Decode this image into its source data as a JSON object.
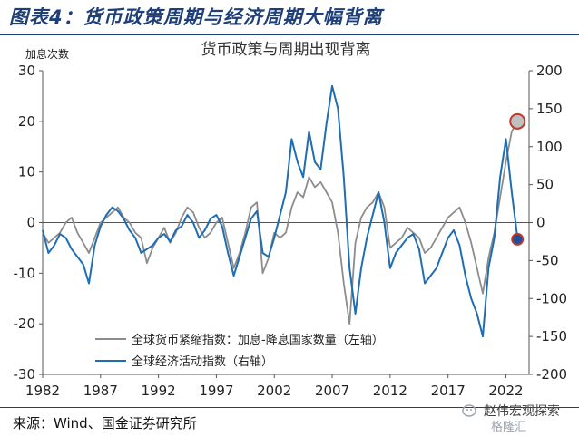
{
  "header": {
    "title": "图表4：货币政策周期与经济周期大幅背离"
  },
  "footer": {
    "source": "来源：Wind、国金证券研究所"
  },
  "watermark": {
    "text": "赵伟宏观探索",
    "sub": "格隆汇"
  },
  "chart_data": {
    "type": "line",
    "title": "货币政策与周期出现背离",
    "left_axis_label": "加息次数",
    "xlim": [
      1982,
      2024
    ],
    "x_ticks": [
      1982,
      1987,
      1992,
      1997,
      2002,
      2007,
      2012,
      2017,
      2022
    ],
    "y_left": {
      "lim": [
        -30,
        30
      ],
      "ticks": [
        -30,
        -20,
        -10,
        0,
        10,
        20,
        30
      ]
    },
    "y_right": {
      "lim": [
        -200,
        200
      ],
      "ticks": [
        -200,
        -150,
        -100,
        -50,
        0,
        50,
        100,
        150,
        200
      ]
    },
    "grid": false,
    "legend_position": "bottom-center",
    "series": [
      {
        "name": "全球货币紧缩指数：加息-降息国家数量（左轴）",
        "axis": "left",
        "color": "#8c8c8c",
        "x": [
          1982.0,
          1982.5,
          1983.0,
          1983.5,
          1984.0,
          1984.5,
          1985.0,
          1985.5,
          1986.0,
          1986.5,
          1987.0,
          1987.5,
          1988.0,
          1988.5,
          1989.0,
          1989.5,
          1990.0,
          1990.5,
          1991.0,
          1991.5,
          1992.0,
          1992.5,
          1993.0,
          1993.5,
          1994.0,
          1994.5,
          1995.0,
          1995.5,
          1996.0,
          1996.5,
          1997.0,
          1997.5,
          1998.0,
          1998.5,
          1999.0,
          1999.5,
          2000.0,
          2000.5,
          2001.0,
          2001.5,
          2002.0,
          2002.5,
          2003.0,
          2003.5,
          2004.0,
          2004.5,
          2005.0,
          2005.5,
          2006.0,
          2006.5,
          2007.0,
          2007.5,
          2008.0,
          2008.5,
          2009.0,
          2009.5,
          2010.0,
          2010.5,
          2011.0,
          2011.5,
          2012.0,
          2012.5,
          2013.0,
          2013.5,
          2014.0,
          2014.5,
          2015.0,
          2015.5,
          2016.0,
          2016.5,
          2017.0,
          2017.5,
          2018.0,
          2018.5,
          2019.0,
          2019.5,
          2020.0,
          2020.5,
          2021.0,
          2021.5,
          2022.0,
          2022.5,
          2023.0
        ],
        "y": [
          -2,
          -4,
          -3,
          -2,
          0,
          1,
          -2,
          -4,
          -6,
          -3,
          0,
          1,
          2,
          3,
          1,
          0,
          -2,
          -3,
          -8,
          -5,
          -3,
          -1,
          -4,
          -2,
          1,
          3,
          2,
          -1,
          -3,
          -2,
          0,
          1,
          -4,
          -9,
          -6,
          -2,
          3,
          4,
          -10,
          -7,
          -2,
          -3,
          -2,
          3,
          6,
          5,
          9,
          7,
          8,
          6,
          4,
          -2,
          -12,
          -20,
          -4,
          1,
          3,
          4,
          6,
          3,
          -5,
          -4,
          -3,
          -1,
          -2,
          -3,
          -6,
          -5,
          -3,
          -1,
          1,
          2,
          3,
          0,
          -4,
          -9,
          -14,
          -7,
          -2,
          5,
          12,
          18,
          20
        ]
      },
      {
        "name": "全球经济活动指数（右轴）",
        "axis": "right",
        "color": "#1f6db3",
        "x": [
          1982.0,
          1982.5,
          1983.0,
          1983.5,
          1984.0,
          1984.5,
          1985.0,
          1985.5,
          1986.0,
          1986.5,
          1987.0,
          1987.5,
          1988.0,
          1988.5,
          1989.0,
          1989.5,
          1990.0,
          1990.5,
          1991.0,
          1991.5,
          1992.0,
          1992.5,
          1993.0,
          1993.5,
          1994.0,
          1994.5,
          1995.0,
          1995.5,
          1996.0,
          1996.5,
          1997.0,
          1997.5,
          1998.0,
          1998.5,
          1999.0,
          1999.5,
          2000.0,
          2000.5,
          2001.0,
          2001.5,
          2002.0,
          2002.5,
          2003.0,
          2003.5,
          2004.0,
          2004.5,
          2005.0,
          2005.5,
          2006.0,
          2006.5,
          2007.0,
          2007.5,
          2008.0,
          2008.5,
          2009.0,
          2009.5,
          2010.0,
          2010.5,
          2011.0,
          2011.5,
          2012.0,
          2012.5,
          2013.0,
          2013.5,
          2014.0,
          2014.5,
          2015.0,
          2015.5,
          2016.0,
          2016.5,
          2017.0,
          2017.5,
          2018.0,
          2018.5,
          2019.0,
          2019.5,
          2020.0,
          2020.5,
          2021.0,
          2021.5,
          2022.0,
          2022.5,
          2023.0
        ],
        "y": [
          -10,
          -40,
          -30,
          -15,
          -20,
          -35,
          -45,
          -55,
          -80,
          -30,
          -5,
          10,
          20,
          15,
          5,
          -10,
          -20,
          -40,
          -35,
          -30,
          -20,
          -15,
          -25,
          -10,
          -5,
          10,
          0,
          -20,
          -10,
          5,
          10,
          -5,
          -40,
          -70,
          -45,
          -20,
          5,
          15,
          -40,
          -45,
          -20,
          10,
          40,
          110,
          80,
          60,
          120,
          80,
          70,
          130,
          180,
          150,
          60,
          -60,
          -120,
          -60,
          -20,
          10,
          40,
          0,
          -60,
          -40,
          -30,
          -20,
          -15,
          -35,
          -80,
          -70,
          -60,
          -40,
          -20,
          -10,
          -30,
          -70,
          -100,
          -120,
          -150,
          -60,
          -20,
          60,
          110,
          40,
          -20
        ]
      }
    ],
    "markers": [
      {
        "series": 0,
        "axis": "left",
        "x": 2023.0,
        "y": 20,
        "color": "#c0c0c0"
      },
      {
        "series": 1,
        "axis": "right",
        "x": 2023.0,
        "y": -22,
        "color": "#1f4f96"
      }
    ]
  }
}
